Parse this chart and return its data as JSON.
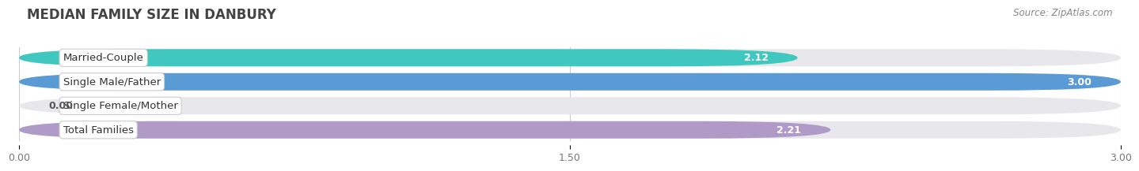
{
  "title": "MEDIAN FAMILY SIZE IN DANBURY",
  "source": "Source: ZipAtlas.com",
  "categories": [
    "Married-Couple",
    "Single Male/Father",
    "Single Female/Mother",
    "Total Families"
  ],
  "values": [
    2.12,
    3.0,
    0.0,
    2.21
  ],
  "bar_colors": [
    "#40c8c0",
    "#5b9bd5",
    "#f4a0b0",
    "#b09ac8"
  ],
  "xlim": [
    0,
    3.0
  ],
  "xticks": [
    0.0,
    1.5,
    3.0
  ],
  "xtick_labels": [
    "0.00",
    "1.50",
    "3.00"
  ],
  "bar_height": 0.72,
  "background_color": "#ffffff",
  "bar_bg_color": "#e8e8ec",
  "title_fontsize": 12,
  "source_fontsize": 8.5,
  "label_fontsize": 9.5,
  "value_fontsize": 9
}
